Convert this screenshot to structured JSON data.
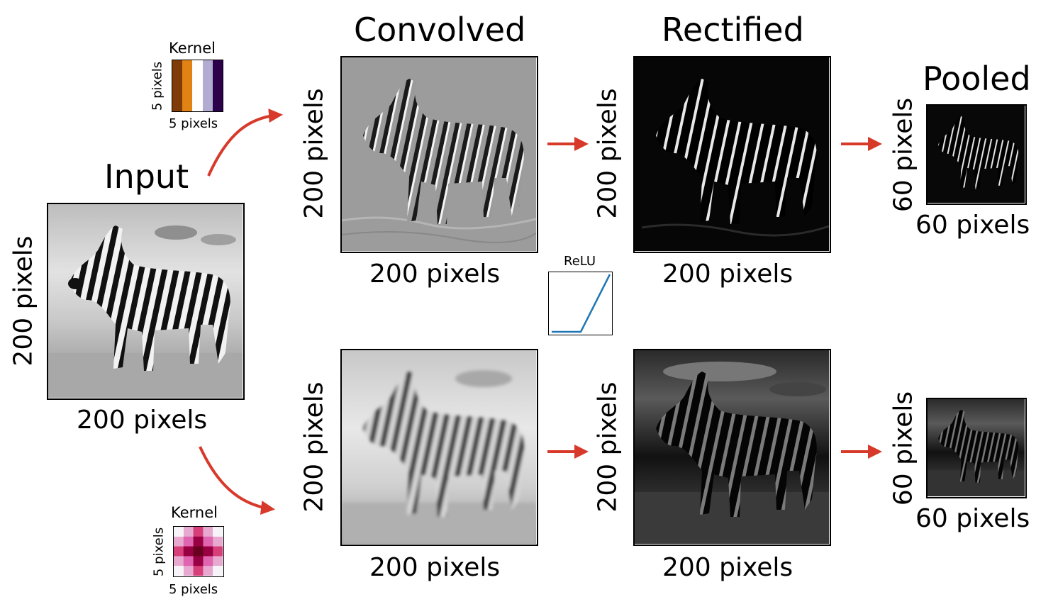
{
  "input": {
    "title": "Input",
    "xlabel": "200 pixels",
    "ylabel": "200 pixels"
  },
  "convolved": {
    "title": "Convolved",
    "xlabel": "200 pixels",
    "ylabel": "200 pixels"
  },
  "rectified": {
    "title": "Rectified",
    "xlabel": "200 pixels",
    "ylabel": "200 pixels"
  },
  "pooled": {
    "title": "Pooled",
    "xlabel": "60 pixels",
    "ylabel": "60 pixels"
  },
  "kernel_top": {
    "title": "Kernel",
    "xlabel": "5 pixels",
    "ylabel": "5 pixels",
    "colors": [
      "#7f3b08",
      "#e08214",
      "#fefefe",
      "#b2abd2",
      "#2d004b"
    ]
  },
  "kernel_bottom": {
    "title": "Kernel",
    "xlabel": "5 pixels",
    "ylabel": "5 pixels",
    "colors": [
      "#f7f4f9",
      "#df65b0",
      "#980043",
      "#67001f"
    ]
  },
  "relu": {
    "title": "ReLU",
    "line_color": "#1f77b4"
  },
  "arrow_color": "#d7392a",
  "bottom_row": {
    "xlabel": "200 pixels",
    "ylabel": "200 pixels",
    "pooled_xlabel": "60 pixels",
    "pooled_ylabel": "60 pixels"
  }
}
